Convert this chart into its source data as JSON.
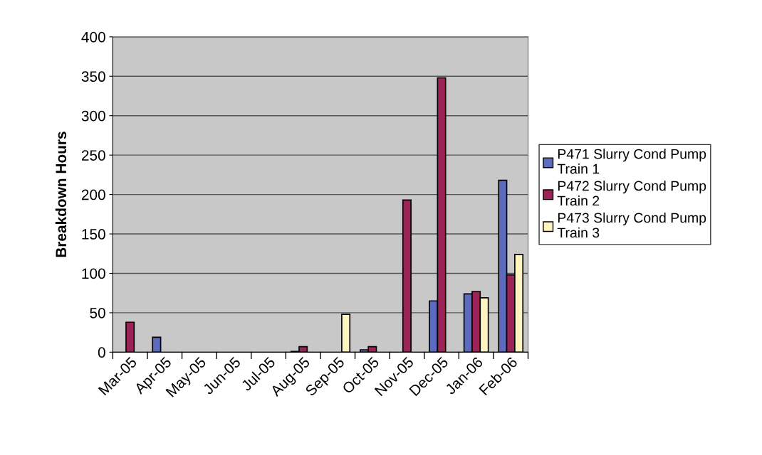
{
  "chart_data": {
    "type": "bar",
    "ylabel": "Breakdown Hours",
    "categories": [
      "Mar-05",
      "Apr-05",
      "May-05",
      "Jun-05",
      "Jul-05",
      "Aug-05",
      "Sep-05",
      "Oct-05",
      "Nov-05",
      "Dec-05",
      "Jan-06",
      "Feb-06"
    ],
    "series": [
      {
        "name": "P471 Slurry Cond Pump\nTrain 1",
        "color": "#5b6bc0",
        "values": [
          null,
          19,
          null,
          null,
          null,
          1,
          null,
          3,
          null,
          65,
          74,
          218
        ]
      },
      {
        "name": "P472 Slurry Cond Pump\nTrain 2",
        "color": "#9b2355",
        "values": [
          38,
          null,
          null,
          null,
          null,
          7,
          null,
          7,
          193,
          348,
          77,
          98
        ]
      },
      {
        "name": "P473 Slurry Cond Pump\nTrain 3",
        "color": "#fff5c0",
        "values": [
          null,
          null,
          null,
          null,
          null,
          null,
          48,
          null,
          null,
          null,
          69,
          124
        ]
      }
    ],
    "ylim": [
      0,
      400
    ],
    "yticks": [
      0,
      50,
      100,
      150,
      200,
      250,
      300,
      350,
      400
    ],
    "grid": "y",
    "legend": "right"
  }
}
